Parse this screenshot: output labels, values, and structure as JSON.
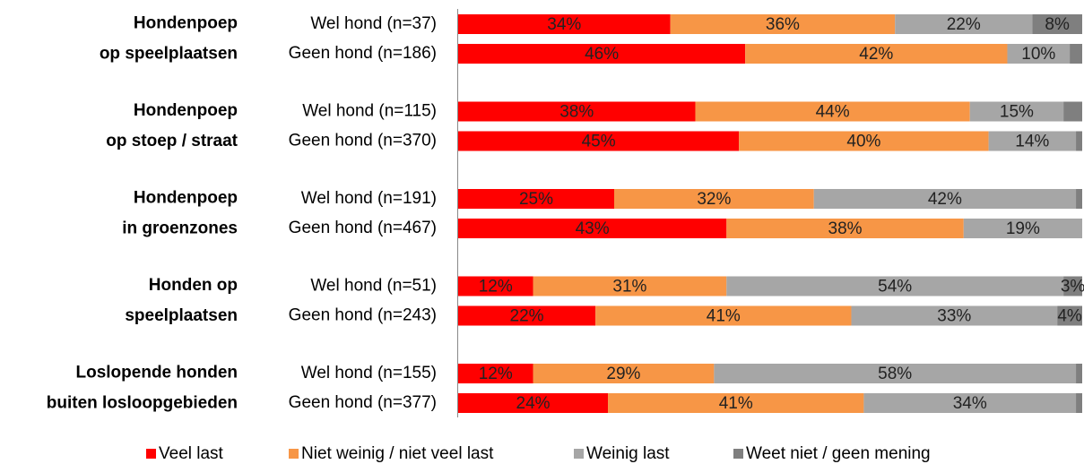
{
  "chart_data": {
    "type": "stacked_bar_h",
    "groups": [
      [
        "Hondenpoep",
        "op speelplaatsen"
      ],
      [
        "Hondenpoep",
        "op stoep / straat"
      ],
      [
        "Hondenpoep",
        "in groenzones"
      ],
      [
        "Honden op",
        "speelplaatsen"
      ],
      [
        "Loslopende honden",
        "buiten losloopgebieden"
      ]
    ],
    "categories": [
      "Wel hond (n=37)",
      "Geen hond (n=186)",
      "Wel hond (n=115)",
      "Geen hond (n=370)",
      "Wel hond (n=191)",
      "Geen hond (n=467)",
      "Wel hond (n=51)",
      "Geen hond (n=243)",
      "Wel hond (n=155)",
      "Geen hond (n=377)"
    ],
    "xlim": [
      0,
      100
    ],
    "series": [
      {
        "name": "Veel last",
        "color": "#ff0000",
        "values": [
          34,
          46,
          38,
          45,
          25,
          43,
          12,
          22,
          12,
          24
        ],
        "value_labels": [
          "34%",
          "46%",
          "38%",
          "45%",
          "25%",
          "43%",
          "12%",
          "22%",
          "12%",
          "24%"
        ]
      },
      {
        "name": "Niet weinig / niet veel last",
        "color": "#f79646",
        "values": [
          36,
          42,
          44,
          40,
          32,
          38,
          31,
          41,
          29,
          41
        ],
        "value_labels": [
          "36%",
          "42%",
          "44%",
          "40%",
          "32%",
          "38%",
          "31%",
          "41%",
          "29%",
          "41%"
        ]
      },
      {
        "name": "Weinig last",
        "color": "#a6a6a6",
        "values": [
          22,
          10,
          15,
          14,
          42,
          19,
          54,
          33,
          58,
          34
        ],
        "value_labels": [
          "22%",
          "10%",
          "15%",
          "14%",
          "42%",
          "19%",
          "54%",
          "33%",
          "58%",
          "34%"
        ]
      },
      {
        "name": "Weet niet / geen mening",
        "color": "#7f7f7f",
        "values": [
          8,
          2,
          3,
          1,
          1,
          0,
          3,
          4,
          1,
          1
        ],
        "value_labels": [
          "8%",
          null,
          null,
          null,
          null,
          null,
          "3%",
          "4%",
          null,
          null
        ]
      }
    ]
  }
}
